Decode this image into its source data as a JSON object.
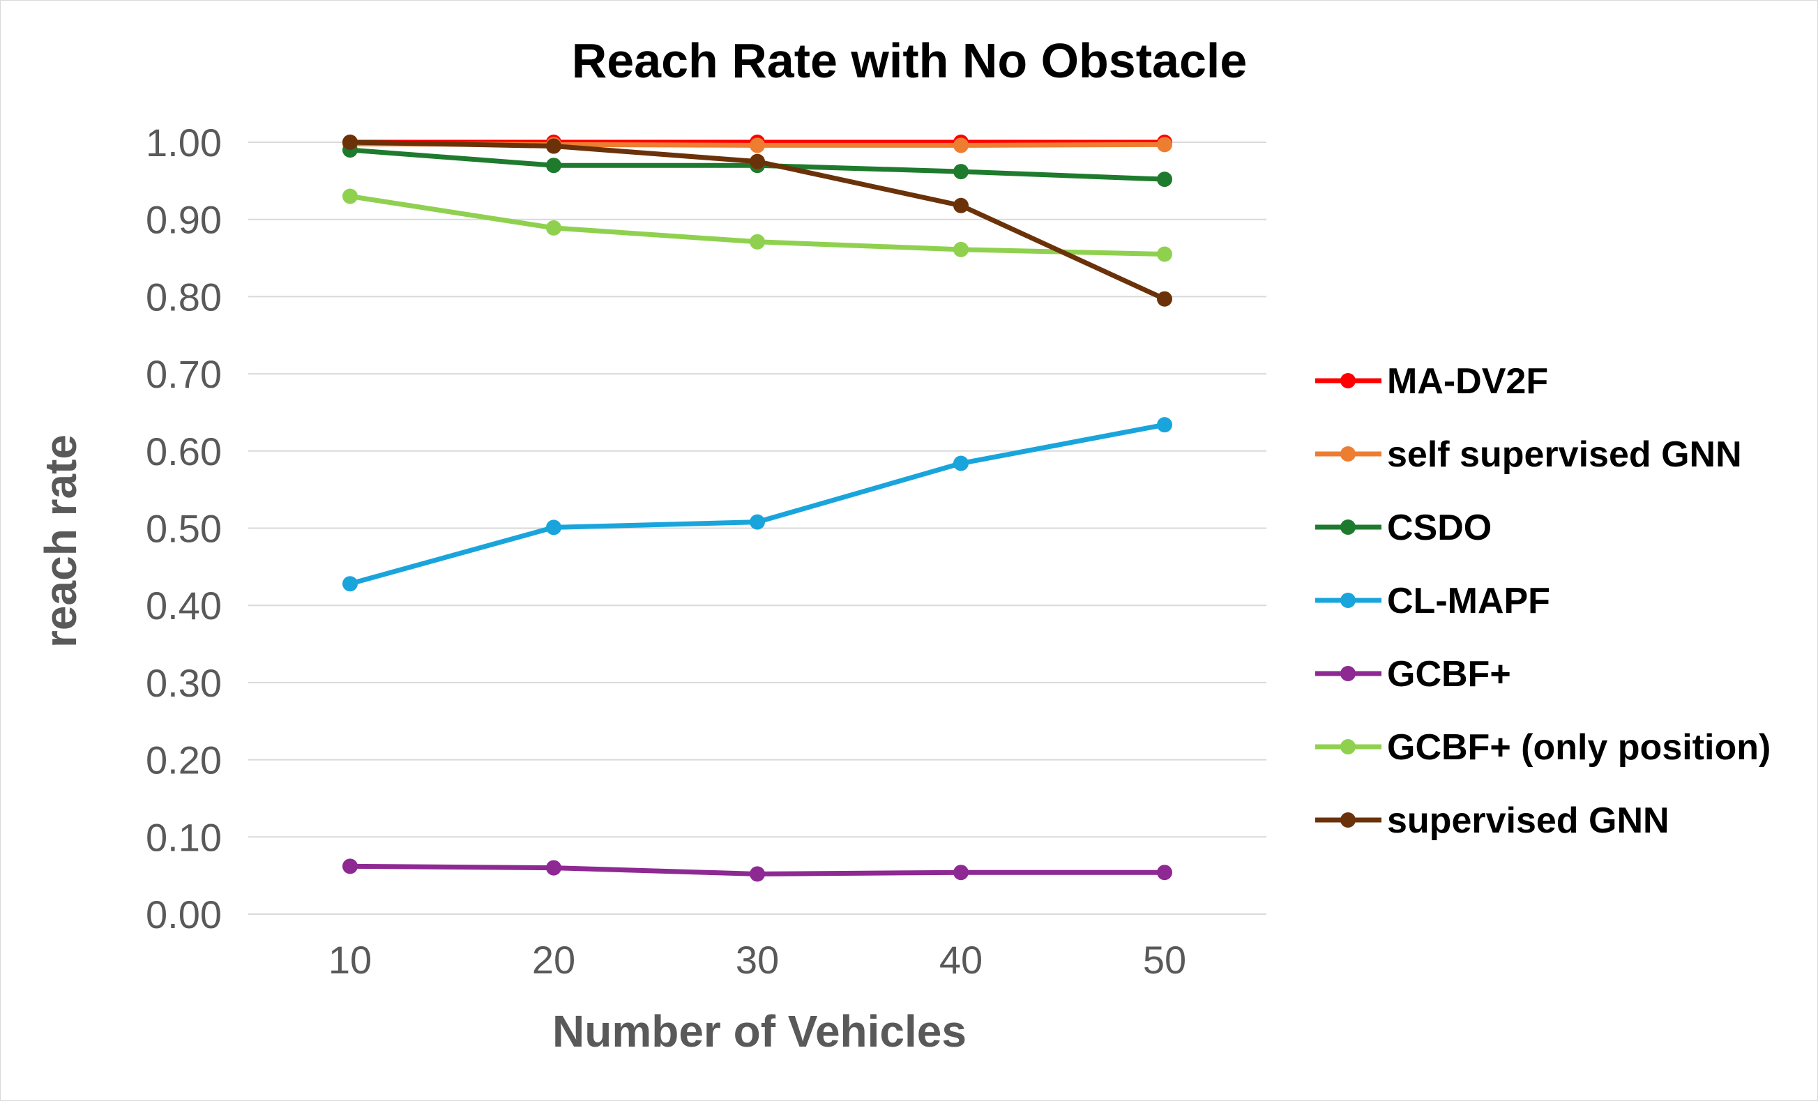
{
  "chart_data": {
    "type": "line",
    "title": "Reach Rate with No Obstacle",
    "xlabel": "Number of Vehicles",
    "ylabel": "reach rate",
    "categories": [
      "10",
      "20",
      "30",
      "40",
      "50"
    ],
    "ylim": [
      0,
      1
    ],
    "yticks": [
      "0.00",
      "0.10",
      "0.20",
      "0.30",
      "0.40",
      "0.50",
      "0.60",
      "0.70",
      "0.80",
      "0.90",
      "1.00"
    ],
    "grid": "horizontal",
    "legend_position": "right",
    "series": [
      {
        "name": "MA-DV2F",
        "color": "#ff0000",
        "values": [
          1.0,
          1.0,
          1.0,
          1.0,
          1.0
        ]
      },
      {
        "name": "self supervised GNN",
        "color": "#ed7d31",
        "values": [
          0.998,
          0.997,
          0.996,
          0.996,
          0.997
        ]
      },
      {
        "name": "CSDO",
        "color": "#1e7b2e",
        "values": [
          0.99,
          0.97,
          0.97,
          0.962,
          0.952
        ]
      },
      {
        "name": "CL-MAPF",
        "color": "#19a5dc",
        "values": [
          0.428,
          0.501,
          0.508,
          0.584,
          0.634
        ]
      },
      {
        "name": "GCBF+",
        "color": "#8e2893",
        "values": [
          0.062,
          0.06,
          0.052,
          0.054,
          0.054
        ]
      },
      {
        "name": "GCBF+ (only position)",
        "color": "#8fd14f",
        "values": [
          0.93,
          0.889,
          0.871,
          0.861,
          0.855
        ]
      },
      {
        "name": "supervised GNN",
        "color": "#6b3209",
        "values": [
          1.0,
          0.995,
          0.975,
          0.918,
          0.797
        ]
      }
    ]
  }
}
